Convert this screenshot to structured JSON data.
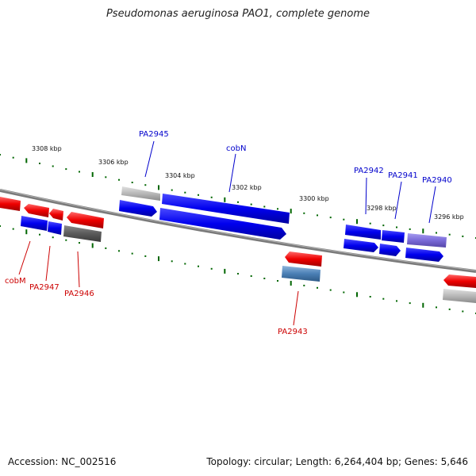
{
  "title": "Pseudomonas aeruginosa PAO1, complete genome",
  "footer": {
    "accession": "Accession: NC_002516",
    "summary": "Topology: circular; Length: 6,264,404 bp; Genes: 5,646"
  },
  "scale_labels": [
    "3308 kbp",
    "3306 kbp",
    "3304 kbp",
    "3302 kbp",
    "3300 kbp",
    "3298 kbp",
    "3296 kbp"
  ],
  "genes": [
    {
      "name": "PA2945",
      "strand": "forward",
      "color": "#0000cc"
    },
    {
      "name": "cobN",
      "strand": "forward",
      "color": "#0000cc"
    },
    {
      "name": "PA2942",
      "strand": "forward",
      "color": "#0000cc"
    },
    {
      "name": "PA2941",
      "strand": "forward",
      "color": "#0000cc"
    },
    {
      "name": "PA2940",
      "strand": "forward",
      "color": "#0000cc"
    },
    {
      "name": "cobM",
      "strand": "reverse",
      "color": "#cc0000"
    },
    {
      "name": "PA2947",
      "strand": "reverse",
      "color": "#cc0000"
    },
    {
      "name": "PA2946",
      "strand": "reverse",
      "color": "#cc0000"
    },
    {
      "name": "PA2943",
      "strand": "reverse",
      "color": "#cc0000"
    }
  ],
  "colors": {
    "forward_label": "#0000cc",
    "reverse_label": "#cc0000",
    "backbone": "#808080",
    "gc_ticks": "#006600"
  }
}
